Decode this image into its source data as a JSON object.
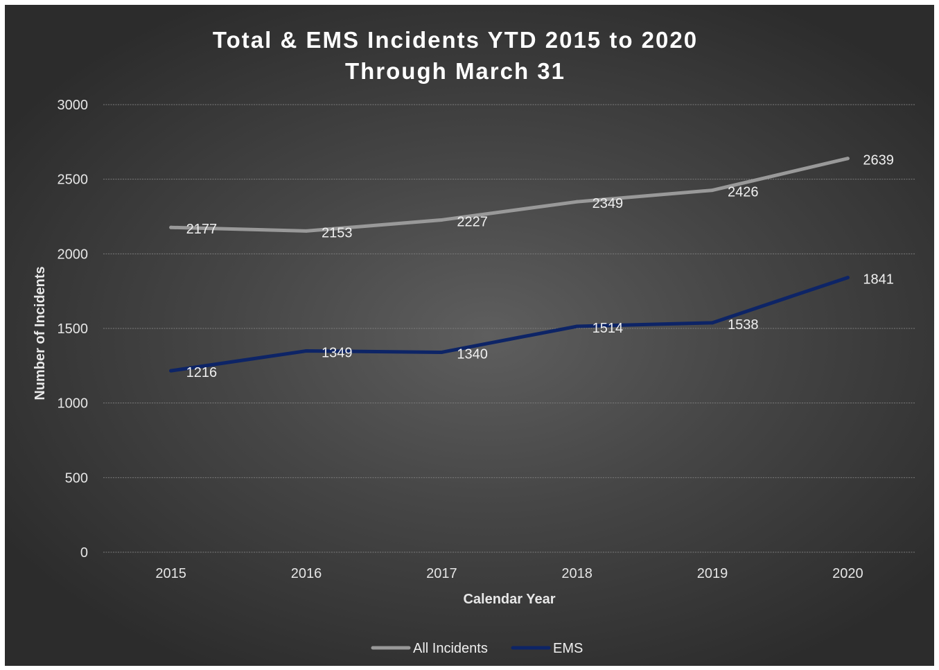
{
  "chart_data": {
    "type": "line",
    "title_lines": [
      "Total & EMS Incidents YTD 2015 to 2020",
      "Through March 31"
    ],
    "xlabel": "Calendar Year",
    "ylabel": "Number of Incidents",
    "categories": [
      "2015",
      "2016",
      "2017",
      "2018",
      "2019",
      "2020"
    ],
    "y_ticks": [
      "0",
      "500",
      "1000",
      "1500",
      "2000",
      "2500",
      "3000"
    ],
    "ylim": [
      0,
      3000
    ],
    "grid": true,
    "legend_position": "bottom",
    "series": [
      {
        "name": "All Incidents",
        "color": "#999999",
        "values": [
          2177,
          2153,
          2227,
          2349,
          2426,
          2639
        ],
        "labels": [
          "2177",
          "2153",
          "2227",
          "2349",
          "2426",
          "2639"
        ]
      },
      {
        "name": "EMS",
        "color": "#0d2466",
        "values": [
          1216,
          1349,
          1340,
          1514,
          1538,
          1841
        ],
        "labels": [
          "1216",
          "1349",
          "1340",
          "1514",
          "1538",
          "1841"
        ]
      }
    ]
  }
}
